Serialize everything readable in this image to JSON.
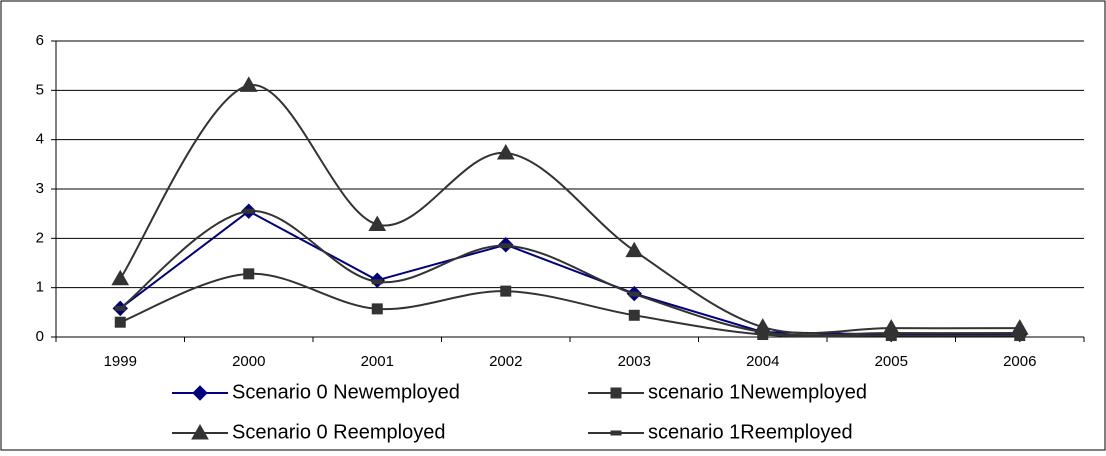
{
  "chart_data": {
    "type": "line",
    "categories": [
      "1999",
      "2000",
      "2001",
      "2002",
      "2003",
      "2004",
      "2005",
      "2006"
    ],
    "ylim": [
      0,
      6
    ],
    "yticks": [
      0,
      1,
      2,
      3,
      4,
      5,
      6
    ],
    "grid": true,
    "series": [
      {
        "name": "Scenario 0 Newemployed",
        "color": "#000080",
        "marker": "diamond",
        "smooth": false,
        "values": [
          0.58,
          2.55,
          1.15,
          1.87,
          0.88,
          0.1,
          0.05,
          0.05
        ]
      },
      {
        "name": "scenario 1Newemployed",
        "color": "#333333",
        "marker": "square",
        "smooth": true,
        "values": [
          0.3,
          1.28,
          0.57,
          0.93,
          0.44,
          0.05,
          0.03,
          0.03
        ]
      },
      {
        "name": "Scenario 0 Reemployed",
        "color": "#333333",
        "marker": "triangle",
        "smooth": true,
        "values": [
          1.18,
          5.1,
          2.28,
          3.73,
          1.75,
          0.2,
          0.18,
          0.18
        ]
      },
      {
        "name": "scenario 1Reemployed",
        "color": "#333333",
        "marker": "dash",
        "smooth": true,
        "values": [
          0.58,
          2.55,
          1.12,
          1.85,
          0.87,
          0.1,
          0.08,
          0.08
        ]
      }
    ]
  }
}
